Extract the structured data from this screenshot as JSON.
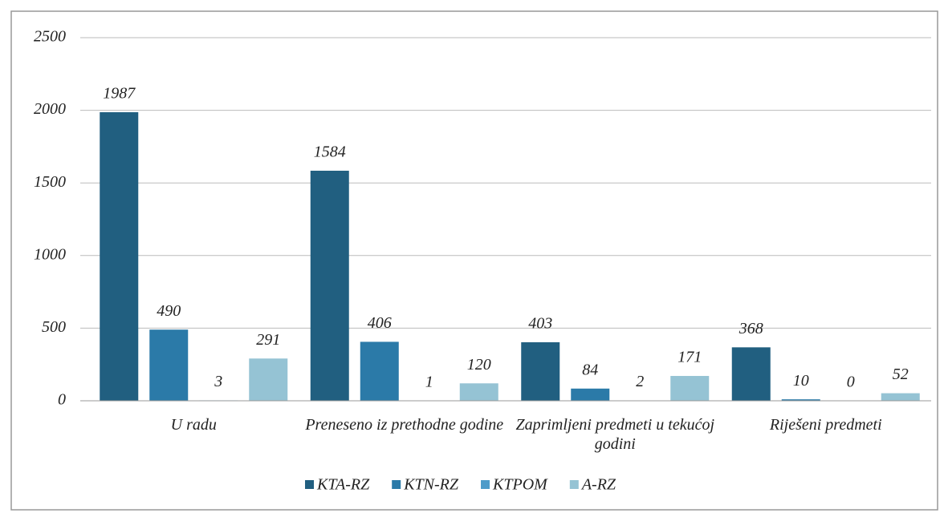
{
  "chart_data": {
    "type": "bar",
    "categories": [
      "U radu",
      "Preneseno iz prethodne godine",
      "Zaprimljeni predmeti u tekućoj godini",
      "Riješeni predmeti"
    ],
    "series": [
      {
        "name": "KTA-RZ",
        "color": "#215f80",
        "values": [
          1987,
          1584,
          403,
          368
        ]
      },
      {
        "name": "KTN-RZ",
        "color": "#2b7aa8",
        "values": [
          490,
          406,
          84,
          10
        ]
      },
      {
        "name": "KTPOM",
        "color": "#4d9bc9",
        "values": [
          3,
          1,
          2,
          0
        ]
      },
      {
        "name": "A-RZ",
        "color": "#95c3d4",
        "values": [
          291,
          120,
          171,
          52
        ]
      }
    ],
    "ylim": [
      0,
      2500
    ],
    "yticks": [
      0,
      500,
      1000,
      1500,
      2000,
      2500
    ],
    "grid": true,
    "legend": "bottom"
  }
}
